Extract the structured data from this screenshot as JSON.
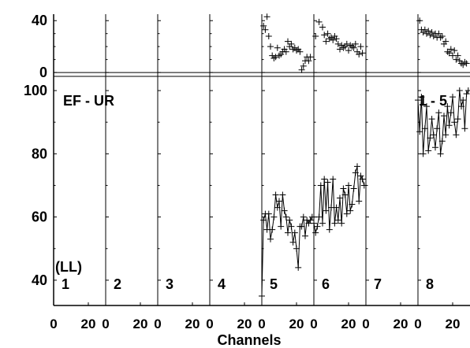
{
  "chart_data": {
    "type": "line",
    "xlabel": "Channels",
    "x_tick_labels": [
      "0",
      "20"
    ],
    "x_range": [
      0,
      30
    ],
    "panel_labels": [
      "1",
      "2",
      "3",
      "4",
      "5",
      "6",
      "7",
      "8"
    ],
    "top_ylim": [
      -3,
      45
    ],
    "top_yticks": [
      0,
      40
    ],
    "bottom_ylim": [
      32,
      104
    ],
    "bottom_yticks": [
      40,
      60,
      80,
      100
    ],
    "annotations": {
      "upper_left": "EF - UR",
      "lower_left": "(LL)",
      "upper_right": "1 - 5"
    },
    "top_series": [
      {
        "panel": 5,
        "x": [
          1,
          2,
          3,
          4,
          5,
          6,
          7,
          8,
          9,
          10,
          11,
          12,
          13,
          14,
          15,
          16,
          17,
          18,
          19,
          20,
          21,
          22,
          23,
          24,
          25,
          26,
          27,
          28
        ],
        "y": [
          36,
          33,
          43,
          28,
          20,
          13,
          11,
          12,
          19,
          13,
          14,
          16,
          18,
          16,
          24,
          20,
          22,
          18,
          19,
          17,
          18,
          16,
          2,
          5,
          9,
          12,
          9,
          12
        ]
      },
      {
        "panel": 6,
        "x": [
          1,
          3,
          5,
          6,
          7,
          8,
          9,
          10,
          11,
          12,
          13,
          14,
          15,
          16,
          17,
          18,
          19,
          20,
          21,
          22,
          23,
          24,
          25,
          26,
          27,
          28
        ],
        "y": [
          28,
          39,
          35,
          29,
          24,
          30,
          26,
          27,
          25,
          28,
          26,
          22,
          18,
          21,
          19,
          20,
          22,
          17,
          21,
          20,
          19,
          22,
          16,
          14,
          20,
          15
        ]
      },
      {
        "panel": 8,
        "x": [
          1,
          2,
          3,
          4,
          5,
          6,
          7,
          8,
          9,
          10,
          11,
          12,
          13,
          14,
          15,
          16,
          17,
          18,
          19,
          20,
          21,
          22,
          23,
          24,
          25,
          26,
          27,
          28
        ],
        "y": [
          40,
          33,
          31,
          33,
          30,
          32,
          29,
          31,
          28,
          30,
          27,
          30,
          27,
          28,
          22,
          24,
          16,
          15,
          18,
          13,
          17,
          10,
          13,
          9,
          7,
          6,
          8,
          7
        ]
      }
    ],
    "bottom_series": [
      {
        "panel": 5,
        "x": [
          0,
          1,
          2,
          3,
          4,
          5,
          6,
          7,
          8,
          9,
          10,
          11,
          12,
          13,
          14,
          15,
          16,
          17,
          18,
          19,
          20,
          21,
          22,
          23,
          24,
          25,
          26,
          27,
          28,
          29
        ],
        "y": [
          35,
          59,
          61,
          56,
          61,
          53,
          56,
          60,
          67,
          63,
          65,
          57,
          67,
          62,
          60,
          55,
          59,
          57,
          52,
          55,
          50,
          44,
          57,
          57,
          60,
          54,
          59,
          58,
          59,
          60
        ]
      },
      {
        "panel": 6,
        "x": [
          0,
          1,
          2,
          3,
          4,
          5,
          6,
          7,
          8,
          9,
          10,
          11,
          12,
          13,
          14,
          15,
          16,
          17,
          18,
          19,
          20,
          21,
          22,
          23,
          24,
          25,
          26,
          27,
          28,
          29
        ],
        "y": [
          58,
          55,
          57,
          60,
          70,
          58,
          72,
          62,
          71,
          56,
          63,
          72,
          58,
          63,
          59,
          66,
          58,
          69,
          67,
          61,
          70,
          62,
          64,
          69,
          74,
          76,
          65,
          73,
          72,
          70
        ]
      },
      {
        "panel": 8,
        "x": [
          0,
          1,
          2,
          3,
          4,
          5,
          6,
          7,
          8,
          9,
          10,
          11,
          12,
          13,
          14,
          15,
          16,
          17,
          18,
          19,
          20,
          21,
          22,
          23,
          24,
          25,
          26,
          27,
          28,
          29
        ],
        "y": [
          97,
          87,
          98,
          80,
          88,
          95,
          81,
          85,
          91,
          86,
          82,
          88,
          93,
          80,
          84,
          92,
          86,
          95,
          89,
          93,
          98,
          90,
          86,
          91,
          100,
          95,
          97,
          88,
          99,
          100
        ]
      }
    ]
  }
}
